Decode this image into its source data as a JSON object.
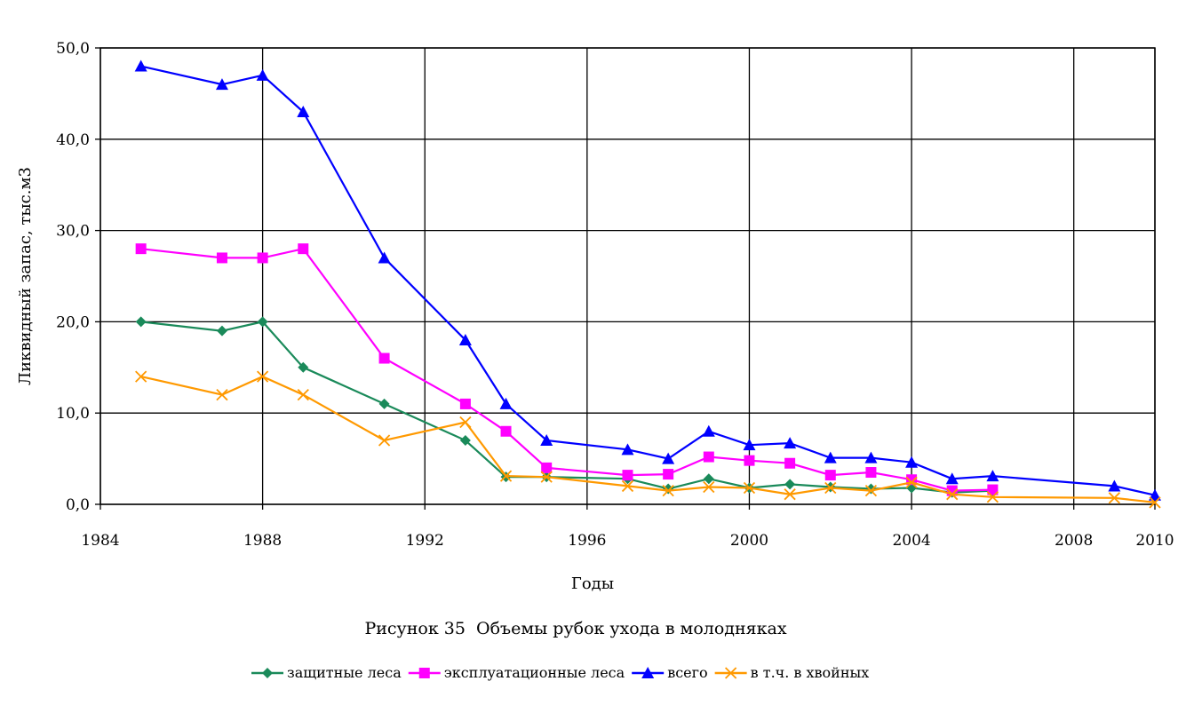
{
  "chart_data": {
    "type": "line",
    "title": "",
    "caption": "Рисунок 35  Объемы рубок ухода в молодняках",
    "xlabel": "Годы",
    "ylabel": "Ликвидный запас, тыс.м3",
    "xlim": [
      1984,
      2010
    ],
    "ylim": [
      0,
      50
    ],
    "x_ticks": [
      1984,
      1988,
      1992,
      1996,
      2000,
      2004,
      2008,
      2010
    ],
    "y_ticks": [
      "0,0",
      "10,0",
      "20,0",
      "30,0",
      "40,0",
      "50,0"
    ],
    "y_tick_values": [
      0,
      10,
      20,
      30,
      40,
      50
    ],
    "grid": true,
    "legend_position": "bottom",
    "series": [
      {
        "name": "защитные леса",
        "color": "#1a8a5a",
        "marker": "diamond",
        "points": [
          [
            1985,
            20
          ],
          [
            1987,
            19
          ],
          [
            1988,
            20
          ],
          [
            1989,
            15
          ],
          [
            1991,
            11
          ],
          [
            1993,
            7
          ],
          [
            1994,
            3
          ],
          [
            1995,
            3
          ],
          [
            1997,
            2.8
          ],
          [
            1998,
            1.7
          ],
          [
            1999,
            2.8
          ],
          [
            2000,
            1.8
          ],
          [
            2001,
            2.2
          ],
          [
            2002,
            1.9
          ],
          [
            2003,
            1.7
          ],
          [
            2004,
            1.8
          ],
          [
            2005,
            1.3
          ],
          [
            2006,
            1.5
          ]
        ]
      },
      {
        "name": "эксплуатационные леса",
        "color": "#ff00ff",
        "marker": "square",
        "points": [
          [
            1985,
            28
          ],
          [
            1987,
            27
          ],
          [
            1988,
            27
          ],
          [
            1989,
            28
          ],
          [
            1991,
            16
          ],
          [
            1993,
            11
          ],
          [
            1994,
            8
          ],
          [
            1995,
            4
          ],
          [
            1997,
            3.2
          ],
          [
            1998,
            3.3
          ],
          [
            1999,
            5.2
          ],
          [
            2000,
            4.8
          ],
          [
            2001,
            4.5
          ],
          [
            2002,
            3.2
          ],
          [
            2003,
            3.5
          ],
          [
            2004,
            2.7
          ],
          [
            2005,
            1.5
          ],
          [
            2006,
            1.6
          ]
        ]
      },
      {
        "name": "всего",
        "color": "#0000ff",
        "marker": "triangle",
        "points": [
          [
            1985,
            48
          ],
          [
            1987,
            46
          ],
          [
            1988,
            47
          ],
          [
            1989,
            43
          ],
          [
            1991,
            27
          ],
          [
            1993,
            18
          ],
          [
            1994,
            11
          ],
          [
            1995,
            7
          ],
          [
            1997,
            6
          ],
          [
            1998,
            5
          ],
          [
            1999,
            8
          ],
          [
            2000,
            6.5
          ],
          [
            2001,
            6.7
          ],
          [
            2002,
            5.1
          ],
          [
            2003,
            5.1
          ],
          [
            2004,
            4.6
          ],
          [
            2005,
            2.8
          ],
          [
            2006,
            3.1
          ],
          [
            2009,
            2
          ],
          [
            2010,
            1
          ]
        ]
      },
      {
        "name": "в т.ч. в хвойных",
        "color": "#ff9900",
        "marker": "x",
        "points": [
          [
            1985,
            14
          ],
          [
            1987,
            12
          ],
          [
            1988,
            14
          ],
          [
            1989,
            12
          ],
          [
            1991,
            7
          ],
          [
            1993,
            9
          ],
          [
            1994,
            3.1
          ],
          [
            1995,
            3
          ],
          [
            1997,
            2
          ],
          [
            1998,
            1.5
          ],
          [
            1999,
            1.9
          ],
          [
            2000,
            1.8
          ],
          [
            2001,
            1.1
          ],
          [
            2002,
            1.8
          ],
          [
            2003,
            1.5
          ],
          [
            2004,
            2.4
          ],
          [
            2005,
            1.1
          ],
          [
            2006,
            0.8
          ],
          [
            2009,
            0.7
          ],
          [
            2010,
            0.2
          ]
        ]
      }
    ]
  }
}
